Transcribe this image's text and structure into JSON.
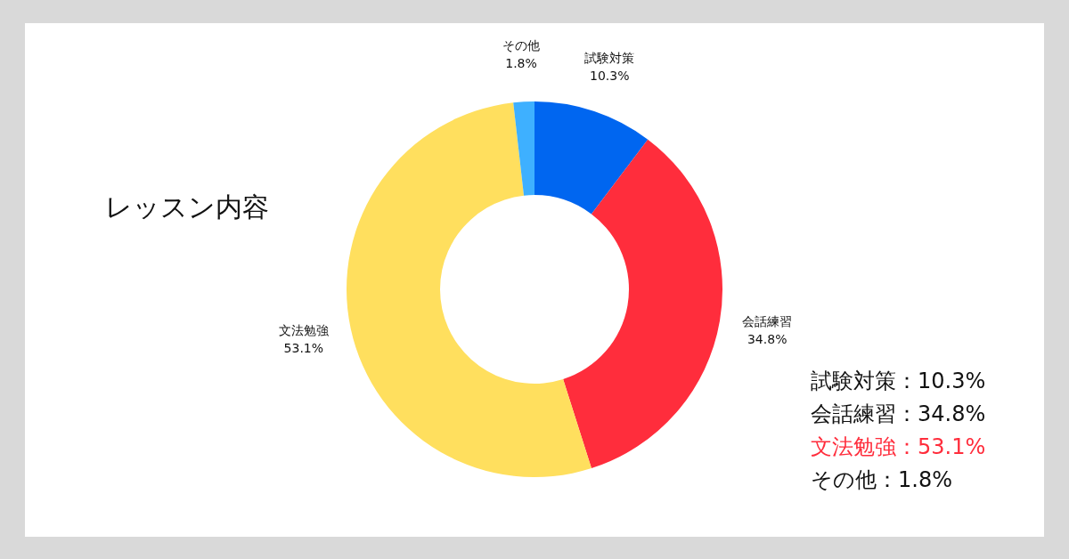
{
  "chart_data": {
    "type": "donut",
    "title": "レッスン内容",
    "categories": [
      "試験対策",
      "会話練習",
      "文法勉強",
      "その他"
    ],
    "values": [
      10.3,
      34.8,
      53.1,
      1.8
    ],
    "value_labels": [
      "10.3%",
      "34.8%",
      "53.1%",
      "1.8%"
    ],
    "colors": [
      "#0066f0",
      "#ff2d3c",
      "#ffdf5e",
      "#3eb0ff"
    ],
    "annotations": [
      "試験対策：10.3%",
      "会話練習：34.8%",
      "文法勉強：53.1%",
      "その他：1.8%"
    ]
  }
}
